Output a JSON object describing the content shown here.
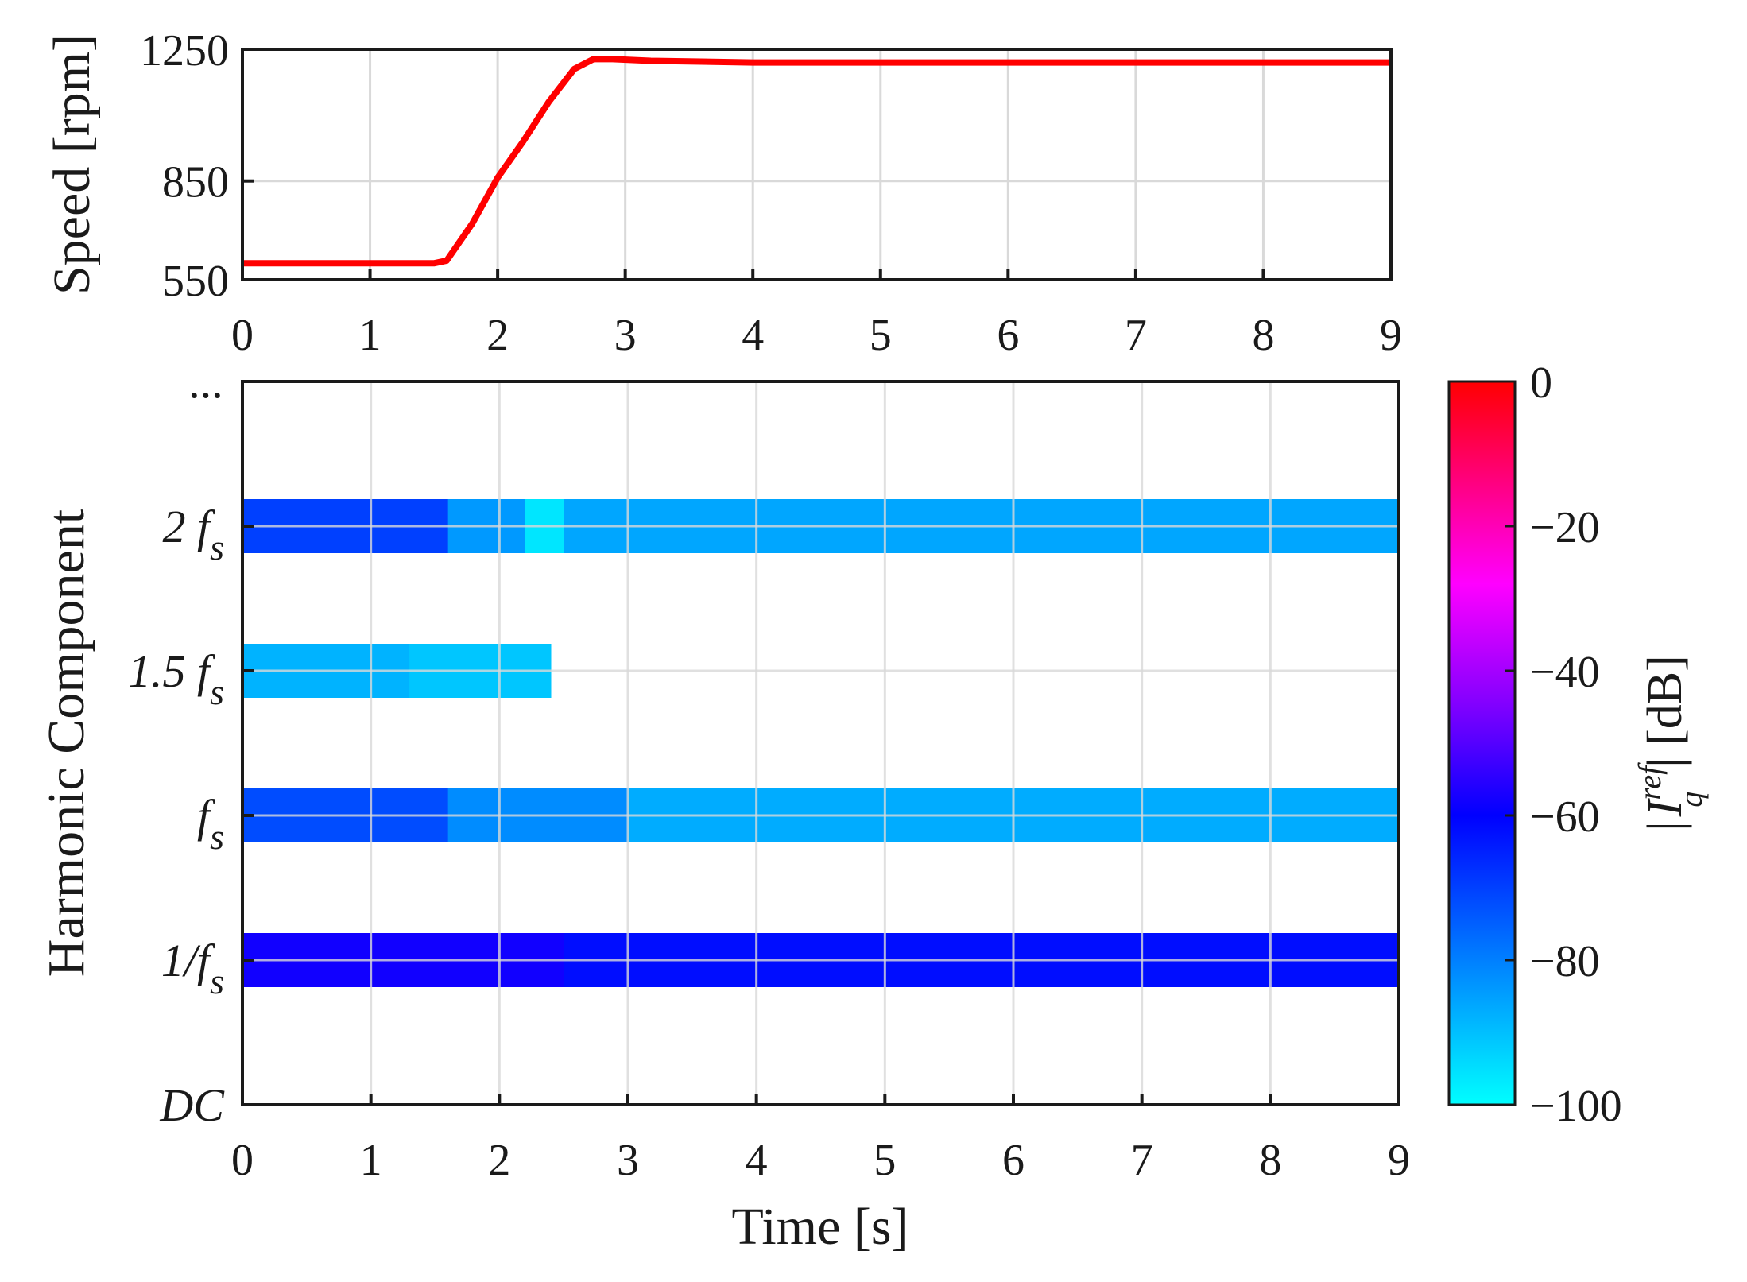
{
  "chart_data": [
    {
      "type": "line",
      "panel": "speed",
      "ylabel": "Speed [rpm]",
      "xlim": [
        0,
        9
      ],
      "ylim": [
        550,
        1250
      ],
      "xticks": [
        0,
        1,
        2,
        3,
        4,
        5,
        6,
        7,
        8,
        9
      ],
      "yticks": [
        550,
        850,
        1250
      ],
      "grid": true,
      "series": [
        {
          "name": "Speed",
          "color": "#ff0000",
          "x": [
            0,
            0.5,
            1.0,
            1.5,
            1.6,
            1.8,
            2.0,
            2.2,
            2.4,
            2.6,
            2.75,
            2.9,
            3.2,
            4,
            5,
            6,
            7,
            8,
            9
          ],
          "y": [
            600,
            600,
            600,
            600,
            608,
            720,
            860,
            970,
            1090,
            1190,
            1220,
            1220,
            1215,
            1210,
            1210,
            1210,
            1210,
            1210,
            1210
          ]
        }
      ]
    },
    {
      "type": "heatmap",
      "panel": "harmonics",
      "xlabel": "Time [s]",
      "ylabel": "Harmonic Component",
      "xlim": [
        0,
        9
      ],
      "xticks": [
        0,
        1,
        2,
        3,
        4,
        5,
        6,
        7,
        8,
        9
      ],
      "yticks": [
        "...",
        "2 f_s",
        "1.5 f_s",
        "f_s",
        "1/f_s",
        "DC"
      ],
      "grid": true,
      "colorbar": {
        "label": "|I_q^ref| [dB]",
        "range": [
          -100,
          0
        ],
        "ticks": [
          0,
          -20,
          -40,
          -60,
          -80,
          -100
        ],
        "colors": [
          "#00ffff",
          "#0000ff",
          "#ff0000"
        ]
      },
      "bands": [
        {
          "component": "2 f_s",
          "segments": [
            {
              "t": [
                0,
                1.6
              ],
              "dB": -70
            },
            {
              "t": [
                1.6,
                2.2
              ],
              "dB": -84
            },
            {
              "t": [
                2.2,
                2.5
              ],
              "dB": -96
            },
            {
              "t": [
                2.5,
                9
              ],
              "dB": -86
            }
          ]
        },
        {
          "component": "1.5 f_s",
          "segments": [
            {
              "t": [
                0,
                1.3
              ],
              "dB": -88
            },
            {
              "t": [
                1.3,
                2.4
              ],
              "dB": -91
            }
          ]
        },
        {
          "component": "f_s",
          "segments": [
            {
              "t": [
                0,
                1.6
              ],
              "dB": -72
            },
            {
              "t": [
                1.6,
                3.0
              ],
              "dB": -82
            },
            {
              "t": [
                3.0,
                9
              ],
              "dB": -87
            }
          ]
        },
        {
          "component": "1/f_s",
          "segments": [
            {
              "t": [
                0,
                2.5
              ],
              "dB": -58
            },
            {
              "t": [
                2.5,
                9
              ],
              "dB": -62
            }
          ]
        }
      ]
    }
  ],
  "labels": {
    "speed_ylabel": "Speed [rpm]",
    "harm_ylabel": "Harmonic Component",
    "xlabel": "Time [s]",
    "cb_label_main": "I",
    "cb_sub": "q",
    "cb_sup": "ref",
    "cb_unit": "| [dB]",
    "cb_bar": "|"
  },
  "colors": {
    "speed_line": "#ff0000",
    "grid": "#d9d9d9",
    "axis": "#1a1a1a"
  }
}
